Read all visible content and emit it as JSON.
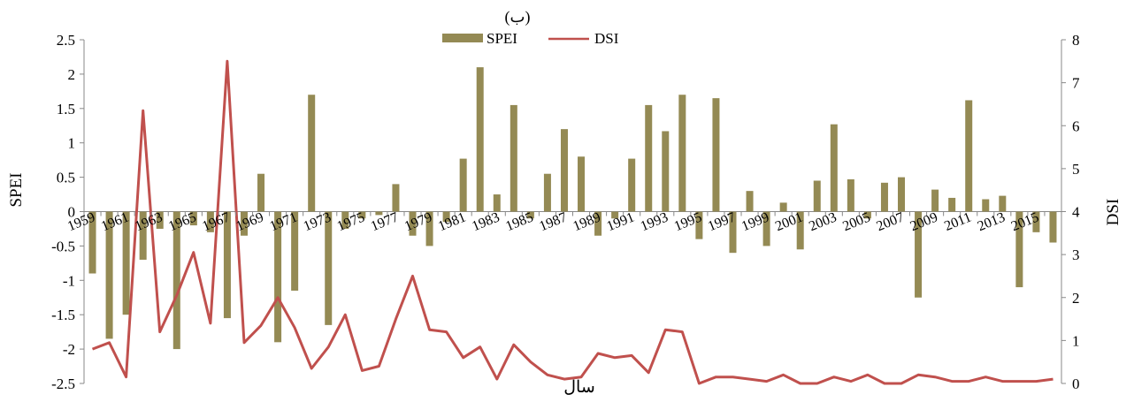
{
  "chart_data": {
    "type": "bar+line",
    "title": "(ب)",
    "xlabel": "سال",
    "ylabel_left": "SPEI",
    "ylabel_right": "DSI",
    "ylim_left": [
      -2.5,
      2.5
    ],
    "ylim_right": [
      0,
      8
    ],
    "yticks_left": [
      "2.5",
      "2",
      "1.5",
      "1",
      "0.5",
      "0",
      "-0.5",
      "-1",
      "-1.5",
      "-2",
      "-2.5"
    ],
    "yticks_right": [
      "8",
      "7",
      "6",
      "5",
      "4",
      "3",
      "2",
      "1",
      "0"
    ],
    "legend_position": "top-center",
    "grid": false,
    "x": [
      1959,
      1960,
      1961,
      1962,
      1963,
      1964,
      1965,
      1966,
      1967,
      1968,
      1969,
      1970,
      1971,
      1972,
      1973,
      1974,
      1975,
      1976,
      1977,
      1978,
      1979,
      1980,
      1981,
      1982,
      1983,
      1984,
      1985,
      1986,
      1987,
      1988,
      1989,
      1990,
      1991,
      1992,
      1993,
      1994,
      1995,
      1996,
      1997,
      1998,
      1999,
      2000,
      2001,
      2002,
      2003,
      2004,
      2005,
      2006,
      2007,
      2008,
      2009,
      2010,
      2011,
      2012,
      2013,
      2014,
      2015,
      2016
    ],
    "x_tick_labels": [
      "1959",
      "1961",
      "1963",
      "1965",
      "1967",
      "1969",
      "1971",
      "1973",
      "1975",
      "1977",
      "1979",
      "1981",
      "1983",
      "1985",
      "1987",
      "1989",
      "1991",
      "1993",
      "1995",
      "1997",
      "1999",
      "2001",
      "2003",
      "2005",
      "2007",
      "2009",
      "2011",
      "2013",
      "2015"
    ],
    "series": [
      {
        "name": "SPEI",
        "type": "bar",
        "axis": "left",
        "color": "#948A54",
        "values": [
          -0.9,
          -1.85,
          -1.5,
          -0.7,
          -0.25,
          -2.0,
          -0.2,
          -0.3,
          -1.55,
          -0.35,
          0.55,
          -1.9,
          -1.15,
          1.7,
          -1.65,
          -0.25,
          -0.1,
          -0.05,
          0.4,
          -0.35,
          -0.5,
          -0.15,
          0.77,
          2.1,
          0.25,
          1.55,
          -0.1,
          0.55,
          1.2,
          0.8,
          -0.35,
          -0.1,
          0.77,
          1.55,
          1.17,
          1.7,
          -0.4,
          1.65,
          -0.6,
          0.3,
          -0.5,
          0.13,
          -0.55,
          0.45,
          1.27,
          0.47,
          -0.1,
          0.42,
          0.5,
          -1.25,
          0.32,
          0.2,
          1.62,
          0.18,
          0.23,
          -1.1,
          -0.3,
          -0.45
        ]
      },
      {
        "name": "DSI",
        "type": "line",
        "axis": "right",
        "color": "#C0504D",
        "values": [
          0.8,
          0.95,
          0.15,
          6.35,
          1.2,
          2.05,
          3.05,
          1.4,
          7.5,
          0.95,
          1.35,
          2.0,
          1.3,
          0.35,
          0.85,
          1.6,
          0.3,
          0.4,
          1.5,
          2.5,
          1.25,
          1.2,
          0.6,
          0.85,
          0.1,
          0.9,
          0.5,
          0.2,
          0.1,
          0.15,
          0.7,
          0.6,
          0.65,
          0.25,
          1.25,
          1.2,
          0.0,
          0.15,
          0.15,
          0.1,
          0.05,
          0.2,
          0.0,
          0.0,
          0.15,
          0.05,
          0.2,
          0.0,
          0.0,
          0.2,
          0.15,
          0.05,
          0.05,
          0.15,
          0.05,
          0.05,
          0.05,
          0.1
        ]
      }
    ]
  }
}
